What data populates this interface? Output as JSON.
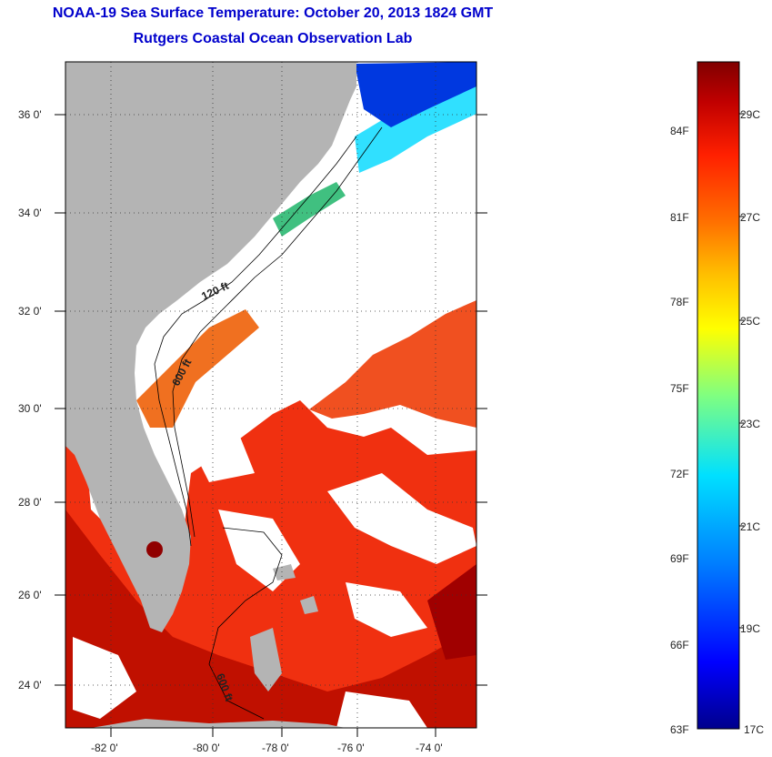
{
  "title": {
    "line1": "NOAA-19 Sea Surface Temperature:  October 20, 2013 1824 GMT",
    "line2": "Rutgers Coastal Ocean Observation Lab"
  },
  "map": {
    "lat_ticks": [
      "36 0'",
      "34 0'",
      "32 0'",
      "30 0'",
      "28 0'",
      "26 0'",
      "24 0'"
    ],
    "lon_ticks": [
      "-82 0'",
      "-80 0'",
      "-78 0'",
      "-76 0'",
      "-74 0'"
    ],
    "contour_labels": [
      "120 ft",
      "600 ft",
      "600 ft"
    ]
  },
  "colorbar": {
    "fahrenheit_labels": [
      "84F",
      "81F",
      "78F",
      "75F",
      "72F",
      "69F",
      "66F",
      "63F"
    ],
    "celsius_labels": [
      "29C",
      "27C",
      "25C",
      "23C",
      "21C",
      "19C",
      "17C"
    ]
  },
  "colors": {
    "land": "#b4b4b4",
    "no_data": "#ffffff",
    "title": "#0000cc",
    "scale": [
      "#800000",
      "#c00000",
      "#ff2000",
      "#ff7000",
      "#ffc000",
      "#ffff00",
      "#80ff80",
      "#00e0ff",
      "#0080ff",
      "#0000ff",
      "#00008c"
    ]
  }
}
